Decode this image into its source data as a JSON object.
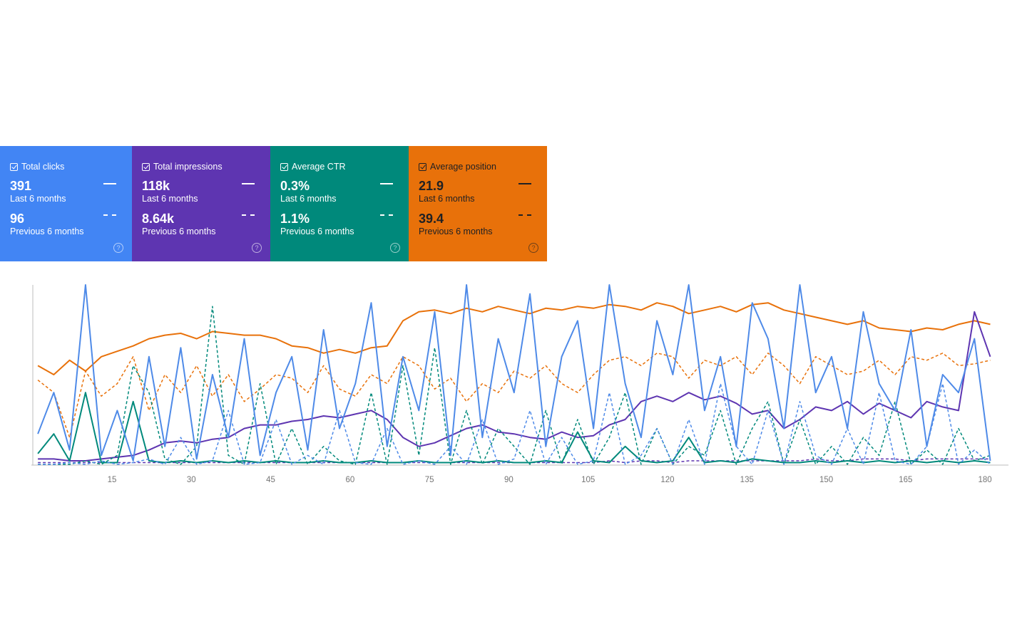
{
  "cards": [
    {
      "title": "Total clicks",
      "value": "391",
      "value_label": "Last 6 months",
      "previous": "96",
      "previous_label": "Previous 6 months",
      "color": "#4285f4",
      "text_color": "#ffffff"
    },
    {
      "title": "Total impressions",
      "value": "118k",
      "value_label": "Last 6 months",
      "previous": "8.64k",
      "previous_label": "Previous 6 months",
      "color": "#5e35b1",
      "text_color": "#ffffff"
    },
    {
      "title": "Average CTR",
      "value": "0.3%",
      "value_label": "Last 6 months",
      "previous": "1.1%",
      "previous_label": "Previous 6 months",
      "color": "#00897b",
      "text_color": "#ffffff"
    },
    {
      "title": "Average position",
      "value": "21.9",
      "value_label": "Last 6 months",
      "previous": "39.4",
      "previous_label": "Previous 6 months",
      "color": "#e8710a",
      "text_color": "#202124"
    }
  ],
  "chart_data": {
    "type": "line",
    "x": [
      1,
      4,
      7,
      10,
      13,
      16,
      19,
      22,
      25,
      28,
      31,
      34,
      37,
      40,
      43,
      46,
      49,
      52,
      55,
      58,
      61,
      64,
      67,
      70,
      73,
      76,
      79,
      82,
      85,
      88,
      91,
      94,
      97,
      100,
      103,
      106,
      109,
      112,
      115,
      118,
      121,
      124,
      127,
      130,
      133,
      136,
      139,
      142,
      145,
      148,
      151,
      154,
      157,
      160,
      163,
      166,
      169,
      172,
      175,
      178,
      181
    ],
    "xlim": [
      0,
      184
    ],
    "xticks": [
      15,
      30,
      45,
      60,
      75,
      90,
      105,
      120,
      135,
      150,
      165,
      180
    ],
    "ylim": [
      0,
      100
    ],
    "grid": false,
    "series": [
      {
        "color": "#e8710a",
        "dashed": true,
        "values": [
          47,
          40,
          15,
          52,
          38,
          45,
          60,
          30,
          50,
          40,
          55,
          38,
          50,
          35,
          42,
          50,
          48,
          40,
          55,
          42,
          38,
          50,
          45,
          60,
          55,
          42,
          48,
          35,
          45,
          40,
          52,
          48,
          55,
          45,
          40,
          50,
          58,
          60,
          55,
          62,
          60,
          48,
          58,
          55,
          60,
          50,
          62,
          55,
          45,
          60,
          55,
          50,
          52,
          58,
          50,
          60,
          58,
          62,
          55,
          56,
          58
        ]
      },
      {
        "color": "#e8710a",
        "dashed": false,
        "values": [
          55,
          50,
          58,
          52,
          60,
          63,
          66,
          70,
          72,
          73,
          70,
          74,
          73,
          72,
          72,
          70,
          66,
          65,
          62,
          64,
          62,
          65,
          66,
          80,
          85,
          86,
          84,
          87,
          85,
          88,
          86,
          84,
          87,
          86,
          88,
          87,
          89,
          88,
          86,
          90,
          88,
          84,
          86,
          88,
          85,
          89,
          90,
          86,
          84,
          82,
          80,
          78,
          80,
          76,
          75,
          74,
          76,
          75,
          78,
          80,
          78
        ]
      },
      {
        "color": "#5e35b1",
        "dashed": true,
        "values": [
          1,
          1,
          1,
          1,
          1,
          1,
          1,
          1,
          1,
          1,
          1,
          1,
          1,
          1,
          1,
          1,
          1,
          1,
          1,
          1,
          1,
          1,
          1,
          1,
          1,
          1,
          1,
          1,
          1,
          1,
          1,
          1,
          1,
          1,
          1,
          1,
          2,
          1,
          2,
          2,
          1,
          2,
          2,
          2,
          2,
          2,
          2,
          2,
          2,
          3,
          2,
          2,
          3,
          3,
          3,
          2,
          3,
          3,
          3,
          3,
          3
        ]
      },
      {
        "color": "#5e35b1",
        "dashed": false,
        "values": [
          3,
          3,
          2,
          2,
          3,
          4,
          5,
          8,
          12,
          13,
          12,
          14,
          15,
          20,
          22,
          22,
          24,
          25,
          27,
          26,
          28,
          30,
          25,
          15,
          10,
          12,
          16,
          20,
          22,
          18,
          17,
          15,
          14,
          18,
          15,
          16,
          22,
          25,
          35,
          38,
          35,
          40,
          36,
          38,
          34,
          28,
          30,
          20,
          25,
          32,
          30,
          35,
          28,
          34,
          30,
          26,
          35,
          32,
          30,
          85,
          60
        ]
      },
      {
        "color": "#00897b",
        "dashed": true,
        "values": [
          0,
          0,
          0,
          2,
          0,
          5,
          55,
          40,
          3,
          0,
          10,
          88,
          5,
          0,
          45,
          0,
          20,
          0,
          10,
          2,
          0,
          40,
          0,
          55,
          5,
          65,
          0,
          30,
          0,
          20,
          10,
          0,
          30,
          0,
          25,
          0,
          15,
          40,
          0,
          20,
          0,
          10,
          5,
          30,
          0,
          20,
          35,
          0,
          25,
          0,
          10,
          0,
          15,
          5,
          35,
          0,
          8,
          0,
          20,
          2,
          5
        ]
      },
      {
        "color": "#00897b",
        "dashed": false,
        "values": [
          6,
          17,
          2,
          40,
          1,
          1,
          35,
          2,
          1,
          2,
          1,
          2,
          1,
          2,
          1,
          2,
          1,
          1,
          2,
          1,
          1,
          2,
          1,
          1,
          2,
          1,
          1,
          2,
          1,
          2,
          1,
          1,
          2,
          1,
          18,
          2,
          1,
          10,
          2,
          1,
          2,
          15,
          1,
          2,
          1,
          3,
          2,
          1,
          1,
          2,
          1,
          2,
          1,
          2,
          1,
          2,
          1,
          2,
          1,
          2,
          1
        ]
      },
      {
        "color": "#4e8ae8",
        "dashed": true,
        "values": [
          0,
          0,
          1,
          0,
          2,
          0,
          1,
          3,
          0,
          15,
          0,
          2,
          30,
          0,
          1,
          25,
          0,
          5,
          0,
          30,
          1,
          0,
          20,
          0,
          2,
          0,
          10,
          0,
          25,
          0,
          3,
          30,
          0,
          15,
          0,
          2,
          40,
          0,
          5,
          20,
          0,
          25,
          0,
          45,
          10,
          0,
          30,
          0,
          35,
          5,
          0,
          20,
          0,
          40,
          2,
          0,
          10,
          45,
          0,
          8,
          0
        ]
      },
      {
        "color": "#4e8ae8",
        "dashed": false,
        "values": [
          17,
          40,
          8,
          100,
          5,
          30,
          2,
          60,
          10,
          65,
          3,
          50,
          15,
          70,
          5,
          40,
          60,
          8,
          75,
          20,
          45,
          90,
          10,
          60,
          30,
          85,
          5,
          100,
          15,
          70,
          40,
          95,
          10,
          60,
          80,
          20,
          100,
          45,
          15,
          80,
          50,
          100,
          30,
          60,
          10,
          90,
          70,
          20,
          100,
          40,
          60,
          20,
          85,
          45,
          30,
          75,
          10,
          50,
          40,
          70,
          2
        ]
      }
    ]
  }
}
